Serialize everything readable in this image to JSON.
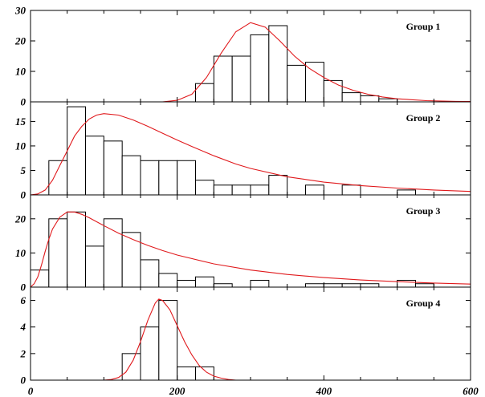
{
  "chart_data": {
    "type": "bar",
    "x_ticks": [
      "0",
      "200",
      "400",
      "600"
    ],
    "xlim": [
      0,
      600
    ],
    "bin_width": 25,
    "fit_color": "#e0191c",
    "panels": [
      {
        "label": "Group 1",
        "ylim": [
          0,
          30
        ],
        "y_ticks": [
          "0",
          "10",
          "20",
          "30"
        ],
        "bins": [
          {
            "x": 225,
            "count": 6
          },
          {
            "x": 250,
            "count": 15
          },
          {
            "x": 275,
            "count": 15
          },
          {
            "x": 300,
            "count": 22
          },
          {
            "x": 325,
            "count": 25
          },
          {
            "x": 350,
            "count": 12
          },
          {
            "x": 375,
            "count": 13
          },
          {
            "x": 400,
            "count": 7
          },
          {
            "x": 425,
            "count": 3
          },
          {
            "x": 450,
            "count": 2
          },
          {
            "x": 475,
            "count": 1
          }
        ],
        "fit": {
          "x": [
            180,
            200,
            220,
            240,
            260,
            280,
            300,
            320,
            340,
            360,
            380,
            400,
            420,
            440,
            460,
            480,
            500,
            540,
            580,
            600
          ],
          "y": [
            0,
            0.5,
            2.5,
            8,
            16,
            23,
            26,
            24.5,
            20,
            15,
            11,
            8,
            5.5,
            3.8,
            2.5,
            1.6,
            1,
            0.4,
            0.15,
            0.1
          ]
        }
      },
      {
        "label": "Group 2",
        "ylim": [
          0,
          19
        ],
        "y_ticks": [
          "0",
          "5",
          "10",
          "15"
        ],
        "bins": [
          {
            "x": 25,
            "count": 7
          },
          {
            "x": 50,
            "count": 18
          },
          {
            "x": 75,
            "count": 12
          },
          {
            "x": 100,
            "count": 11
          },
          {
            "x": 125,
            "count": 8
          },
          {
            "x": 150,
            "count": 7
          },
          {
            "x": 175,
            "count": 7
          },
          {
            "x": 200,
            "count": 7
          },
          {
            "x": 225,
            "count": 3
          },
          {
            "x": 250,
            "count": 2
          },
          {
            "x": 275,
            "count": 2
          },
          {
            "x": 300,
            "count": 2
          },
          {
            "x": 325,
            "count": 4
          },
          {
            "x": 375,
            "count": 2
          },
          {
            "x": 425,
            "count": 2
          },
          {
            "x": 500,
            "count": 1
          }
        ],
        "fit": {
          "x": [
            0,
            10,
            20,
            30,
            40,
            50,
            60,
            70,
            80,
            90,
            100,
            120,
            140,
            160,
            180,
            200,
            220,
            250,
            280,
            300,
            350,
            400,
            450,
            500,
            550,
            600
          ],
          "y": [
            0,
            0.2,
            1,
            3,
            6,
            9,
            12,
            14,
            15.5,
            16.3,
            16.6,
            16.3,
            15.3,
            14,
            12.6,
            11.2,
            9.9,
            8,
            6.3,
            5.4,
            3.7,
            2.6,
            1.9,
            1.4,
            1,
            0.7
          ]
        }
      },
      {
        "label": "Group 3",
        "ylim": [
          0,
          27
        ],
        "y_ticks": [
          "0",
          "10",
          "20"
        ],
        "bins": [
          {
            "x": 0,
            "count": 5
          },
          {
            "x": 25,
            "count": 20
          },
          {
            "x": 50,
            "count": 22
          },
          {
            "x": 75,
            "count": 12
          },
          {
            "x": 100,
            "count": 20
          },
          {
            "x": 125,
            "count": 16
          },
          {
            "x": 150,
            "count": 8
          },
          {
            "x": 175,
            "count": 4
          },
          {
            "x": 200,
            "count": 2
          },
          {
            "x": 225,
            "count": 3
          },
          {
            "x": 250,
            "count": 1
          },
          {
            "x": 300,
            "count": 2
          },
          {
            "x": 375,
            "count": 1
          },
          {
            "x": 400,
            "count": 1
          },
          {
            "x": 425,
            "count": 1
          },
          {
            "x": 450,
            "count": 1
          },
          {
            "x": 500,
            "count": 2
          },
          {
            "x": 525,
            "count": 1
          }
        ],
        "fit": {
          "x": [
            0,
            5,
            10,
            15,
            20,
            25,
            30,
            40,
            50,
            60,
            70,
            80,
            100,
            120,
            140,
            160,
            180,
            200,
            250,
            300,
            350,
            400,
            450,
            500,
            550,
            600
          ],
          "y": [
            0,
            1,
            3,
            6.5,
            10.5,
            14,
            17,
            20.5,
            22,
            22,
            21.3,
            20.3,
            18,
            15.8,
            13.9,
            12.2,
            10.7,
            9.4,
            6.8,
            5,
            3.7,
            2.8,
            2.1,
            1.6,
            1.2,
            0.9
          ]
        }
      },
      {
        "label": "Group 4",
        "ylim": [
          0,
          7
        ],
        "y_ticks": [
          "0",
          "2",
          "4",
          "6"
        ],
        "bins": [
          {
            "x": 125,
            "count": 2
          },
          {
            "x": 150,
            "count": 4
          },
          {
            "x": 175,
            "count": 6
          },
          {
            "x": 200,
            "count": 1
          },
          {
            "x": 225,
            "count": 1
          }
        ],
        "fit": {
          "x": [
            100,
            110,
            120,
            130,
            140,
            150,
            160,
            170,
            175,
            180,
            190,
            200,
            210,
            220,
            230,
            240,
            250,
            260,
            270,
            280
          ],
          "y": [
            0,
            0.05,
            0.2,
            0.6,
            1.5,
            2.9,
            4.5,
            5.8,
            6.1,
            6,
            5.3,
            4.1,
            2.9,
            1.9,
            1.1,
            0.6,
            0.3,
            0.15,
            0.05,
            0
          ]
        }
      }
    ]
  }
}
